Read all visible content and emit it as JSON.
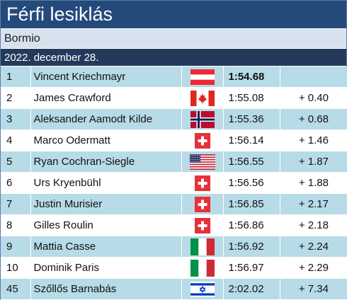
{
  "header": {
    "title": "Férfi lesiklás",
    "venue": "Bormio",
    "date": "2022. december 28."
  },
  "results": [
    {
      "rank": "1",
      "name": "Vincent Kriechmayr",
      "flag": "austria-flag-icon",
      "time": "1:54.68",
      "gap": ""
    },
    {
      "rank": "2",
      "name": "James Crawford",
      "flag": "canada-flag-icon",
      "time": "1:55.08",
      "gap": "+ 0.40"
    },
    {
      "rank": "3",
      "name": "Aleksander Aamodt Kilde",
      "flag": "norway-flag-icon",
      "time": "1:55.36",
      "gap": "+ 0.68"
    },
    {
      "rank": "4",
      "name": "Marco Odermatt",
      "flag": "switzerland-flag-icon",
      "time": "1:56.14",
      "gap": "+ 1.46"
    },
    {
      "rank": "5",
      "name": "Ryan Cochran-Siegle",
      "flag": "usa-flag-icon",
      "time": "1:56.55",
      "gap": "+ 1.87"
    },
    {
      "rank": "6",
      "name": "Urs Kryenbühl",
      "flag": "switzerland-flag-icon",
      "time": "1:56.56",
      "gap": "+ 1.88"
    },
    {
      "rank": "7",
      "name": "Justin Murisier",
      "flag": "switzerland-flag-icon",
      "time": "1:56.85",
      "gap": "+ 2.17"
    },
    {
      "rank": "8",
      "name": "Gilles Roulin",
      "flag": "switzerland-flag-icon",
      "time": "1:56.86",
      "gap": "+ 2.18"
    },
    {
      "rank": "9",
      "name": "Mattia Casse",
      "flag": "italy-flag-icon",
      "time": "1:56.92",
      "gap": "+ 2.24"
    },
    {
      "rank": "10",
      "name": "Dominik Paris",
      "flag": "italy-flag-icon",
      "time": "1:56.97",
      "gap": "+ 2.29"
    },
    {
      "rank": "45",
      "name": "Szőllős Barnabás",
      "flag": "israel-flag-icon",
      "time": "2:02.02",
      "gap": "+ 7.34"
    }
  ]
}
